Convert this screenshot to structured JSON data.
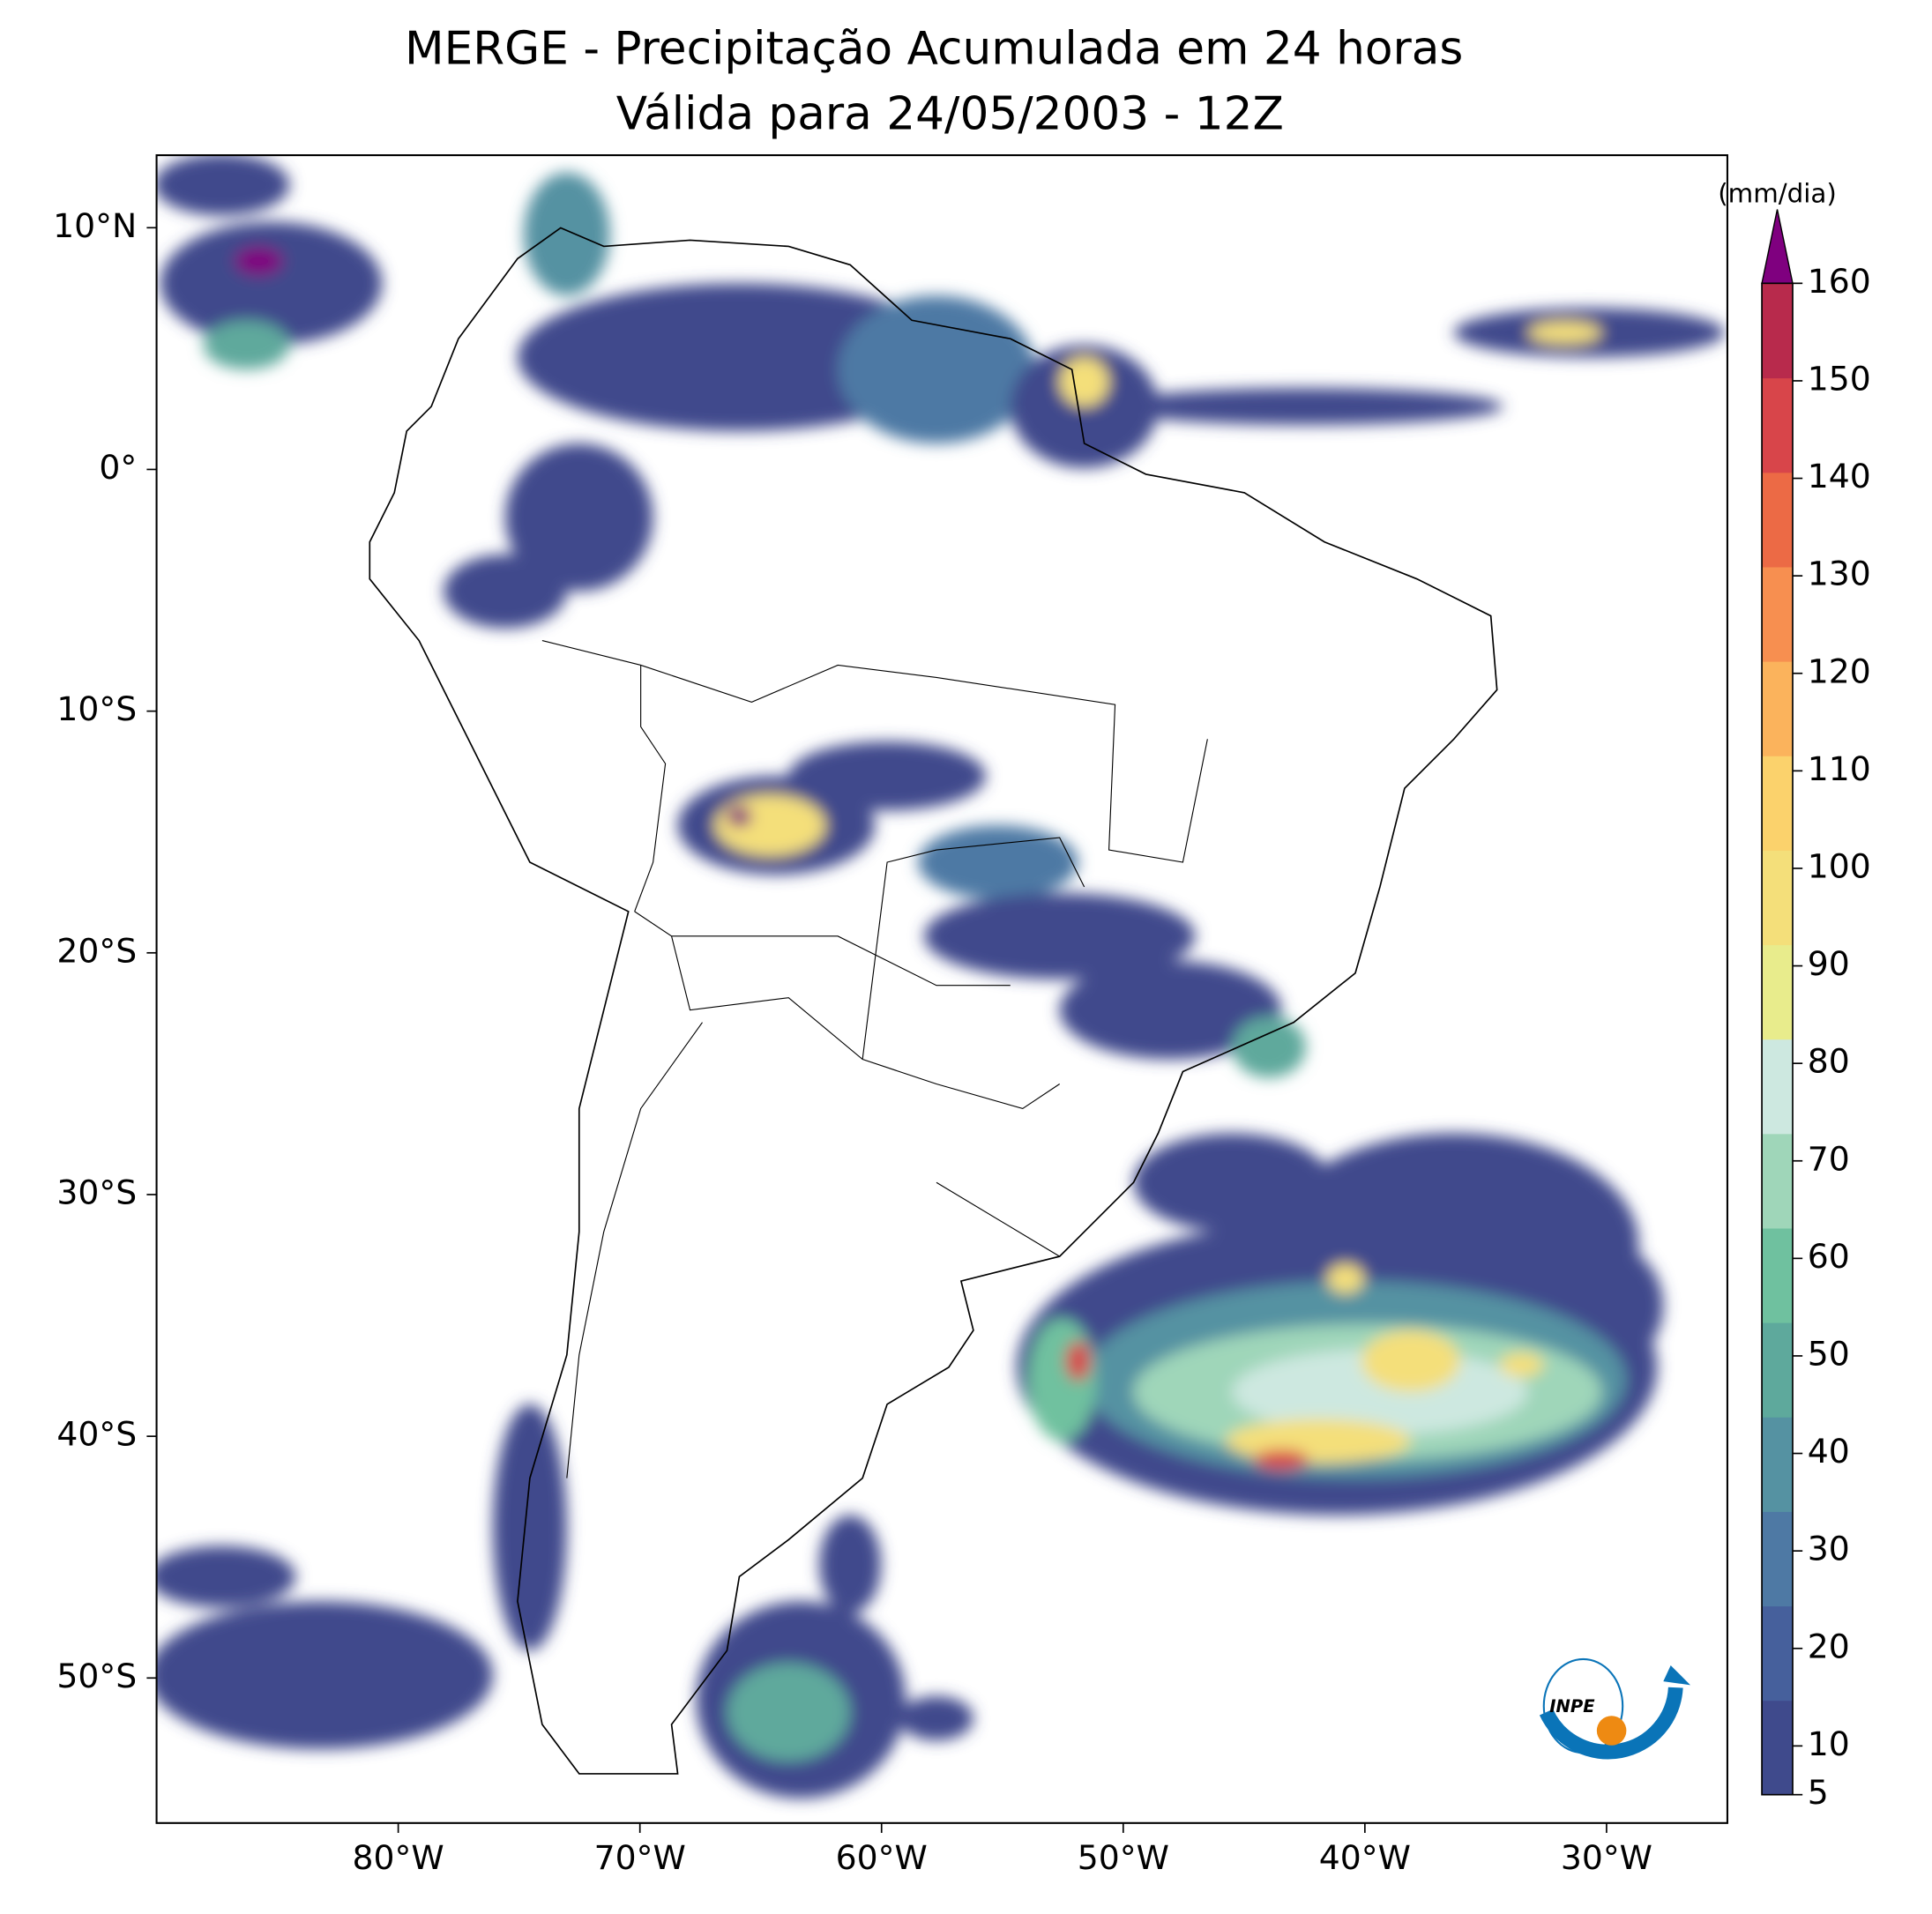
{
  "chart_data": {
    "type": "map",
    "title": "MERGE - Precipitação Acumulada em 24 horas",
    "subtitle": "Válida para 24/05/2003 - 12Z",
    "xlim": [
      -90,
      -25
    ],
    "ylim": [
      -56,
      13
    ],
    "xticks": [
      {
        "value": -80,
        "label": "80°W"
      },
      {
        "value": -70,
        "label": "70°W"
      },
      {
        "value": -60,
        "label": "60°W"
      },
      {
        "value": -50,
        "label": "50°W"
      },
      {
        "value": -40,
        "label": "40°W"
      },
      {
        "value": -30,
        "label": "30°W"
      }
    ],
    "yticks": [
      {
        "value": 10,
        "label": "10°N"
      },
      {
        "value": 0,
        "label": "0°"
      },
      {
        "value": -10,
        "label": "10°S"
      },
      {
        "value": -20,
        "label": "20°S"
      },
      {
        "value": -30,
        "label": "30°S"
      },
      {
        "value": -40,
        "label": "40°S"
      },
      {
        "value": -50,
        "label": "50°S"
      }
    ],
    "colorbar": {
      "label": "(mm/dia)",
      "lim": [
        5,
        160
      ],
      "ticks": [
        5,
        10,
        20,
        30,
        40,
        50,
        60,
        70,
        80,
        90,
        100,
        110,
        120,
        130,
        140,
        150,
        160
      ],
      "colors": [
        "#3f4a8c",
        "#46609c",
        "#4e79a4",
        "#5592a2",
        "#5ea99c",
        "#6fc19f",
        "#9fd6b9",
        "#cde8e0",
        "#e8ec8c",
        "#f4df7a",
        "#fbd26c",
        "#fbb35c",
        "#f78f50",
        "#ec6a45",
        "#d8454a",
        "#b82a4c"
      ],
      "extend_color": "#7f007f"
    },
    "logo": "INPE"
  }
}
